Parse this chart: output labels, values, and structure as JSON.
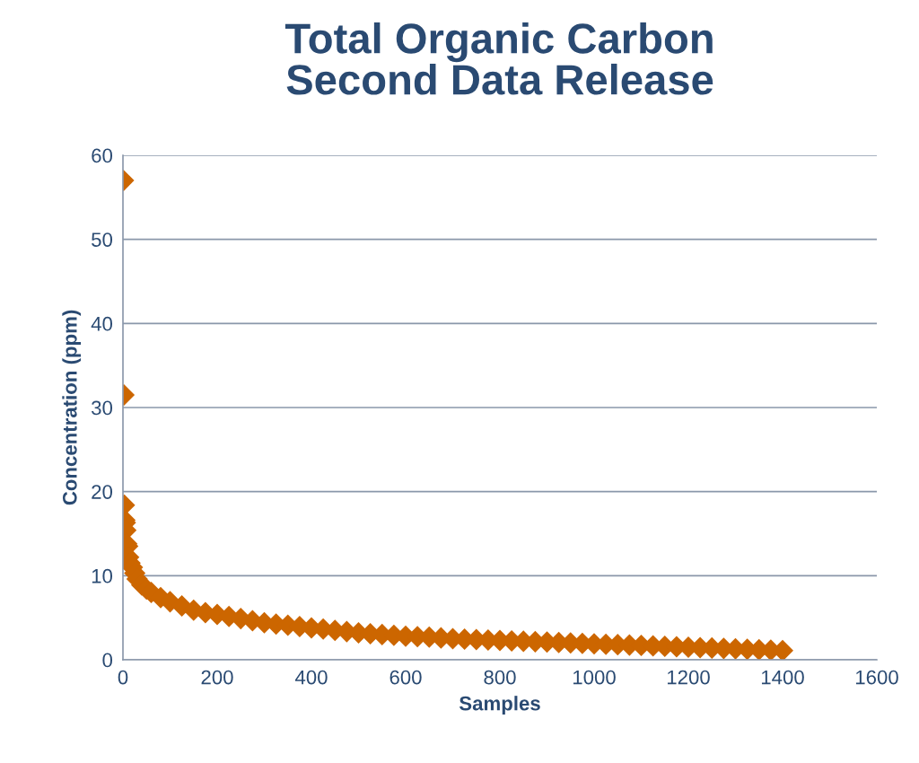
{
  "chart_data": {
    "type": "scatter",
    "title": "Total Organic Carbon\nSecond Data Release",
    "xlabel": "Samples",
    "ylabel": "Concentration (ppm)",
    "x": [
      1,
      2,
      3,
      4,
      5,
      6,
      8,
      10,
      12,
      15,
      20,
      25,
      30,
      40,
      50,
      60,
      80,
      100,
      125,
      150,
      175,
      200,
      225,
      250,
      275,
      300,
      325,
      350,
      375,
      400,
      425,
      450,
      475,
      500,
      525,
      550,
      575,
      600,
      625,
      650,
      675,
      700,
      725,
      750,
      775,
      800,
      825,
      850,
      875,
      900,
      925,
      950,
      975,
      1000,
      1025,
      1050,
      1075,
      1100,
      1125,
      1150,
      1175,
      1200,
      1225,
      1250,
      1275,
      1300,
      1325,
      1350,
      1375,
      1400
    ],
    "series": [
      {
        "color": "#cc6600",
        "values": [
          57,
          31.5,
          18.4,
          16.6,
          16.3,
          15.4,
          13.8,
          13.5,
          12.2,
          11.5,
          11,
          10.3,
          9.6,
          8.9,
          8.4,
          8.0,
          7.4,
          6.9,
          6.4,
          5.9,
          5.6,
          5.4,
          5.15,
          4.9,
          4.65,
          4.4,
          4.25,
          4.1,
          3.95,
          3.8,
          3.65,
          3.5,
          3.35,
          3.2,
          3.1,
          3.0,
          2.9,
          2.8,
          2.75,
          2.7,
          2.6,
          2.5,
          2.45,
          2.4,
          2.35,
          2.3,
          2.25,
          2.2,
          2.15,
          2.1,
          2.05,
          2.0,
          1.95,
          1.9,
          1.85,
          1.8,
          1.75,
          1.7,
          1.65,
          1.6,
          1.55,
          1.5,
          1.45,
          1.4,
          1.35,
          1.3,
          1.25,
          1.2,
          1.15,
          1.1
        ]
      }
    ],
    "xlim": [
      0,
      1600
    ],
    "xticks": [
      0,
      200,
      400,
      600,
      800,
      1000,
      1200,
      1400,
      1600
    ],
    "ylim": [
      0,
      60
    ],
    "yticks": [
      0,
      10,
      20,
      30,
      40,
      50,
      60
    ],
    "grid": "y",
    "legend": false,
    "marker": "diamond"
  }
}
